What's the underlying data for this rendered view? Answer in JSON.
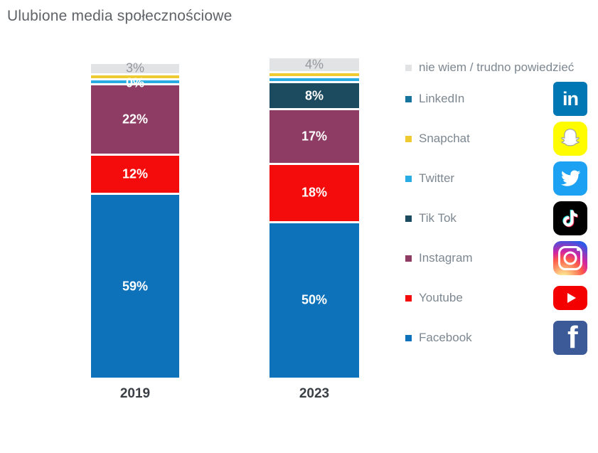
{
  "title": "Ulubione media społecznościowe",
  "chart_data": {
    "type": "bar",
    "stacked": true,
    "title": "Ulubione media społecznościowe",
    "categories": [
      "2019",
      "2023"
    ],
    "unit": "%",
    "ylim": [
      0,
      100
    ],
    "grid": false,
    "legend_position": "right",
    "series": [
      {
        "name": "Facebook",
        "color": "#0d72b9",
        "icon": "facebook-icon",
        "values": [
          59,
          50
        ],
        "labels": [
          "59%",
          "50%"
        ]
      },
      {
        "name": "Youtube",
        "color": "#f40b0b",
        "icon": "youtube-icon",
        "values": [
          12,
          18
        ],
        "labels": [
          "12%",
          "18%"
        ]
      },
      {
        "name": "Instagram",
        "color": "#8e3c63",
        "icon": "instagram-icon",
        "values": [
          22,
          17
        ],
        "labels": [
          "22%",
          "17%"
        ]
      },
      {
        "name": "Tik Tok",
        "color": "#1c4a5e",
        "icon": "tiktok-icon",
        "values": [
          0,
          8
        ],
        "labels": [
          "0%",
          "8%"
        ]
      },
      {
        "name": "Twitter",
        "color": "#29ace4",
        "icon": "twitter-icon",
        "values": [
          1,
          1
        ],
        "labels": [
          "",
          ""
        ]
      },
      {
        "name": "Snapchat",
        "color": "#eecb31",
        "icon": "snapchat-icon",
        "values": [
          1,
          1
        ],
        "labels": [
          "",
          ""
        ]
      },
      {
        "name": "LinkedIn",
        "color": "#17749c",
        "icon": "linkedin-icon",
        "values": [
          0,
          0
        ],
        "labels": [
          "",
          ""
        ]
      },
      {
        "name": "nie wiem / trudno powiedzieć",
        "color": "#e2e3e4",
        "values": [
          3,
          4
        ],
        "labels": [
          "3%",
          "4%"
        ],
        "label_color": "#95989c"
      }
    ]
  },
  "icon_colors": {
    "linkedin": "#0077b5",
    "snapchat": "#fffc00",
    "twitter": "#1da1f2",
    "tiktok": "#010101",
    "tiktok_cyan": "#25f4ee",
    "tiktok_red": "#fe2c55",
    "youtube": "#f40000",
    "facebook": "#3d5a98"
  }
}
